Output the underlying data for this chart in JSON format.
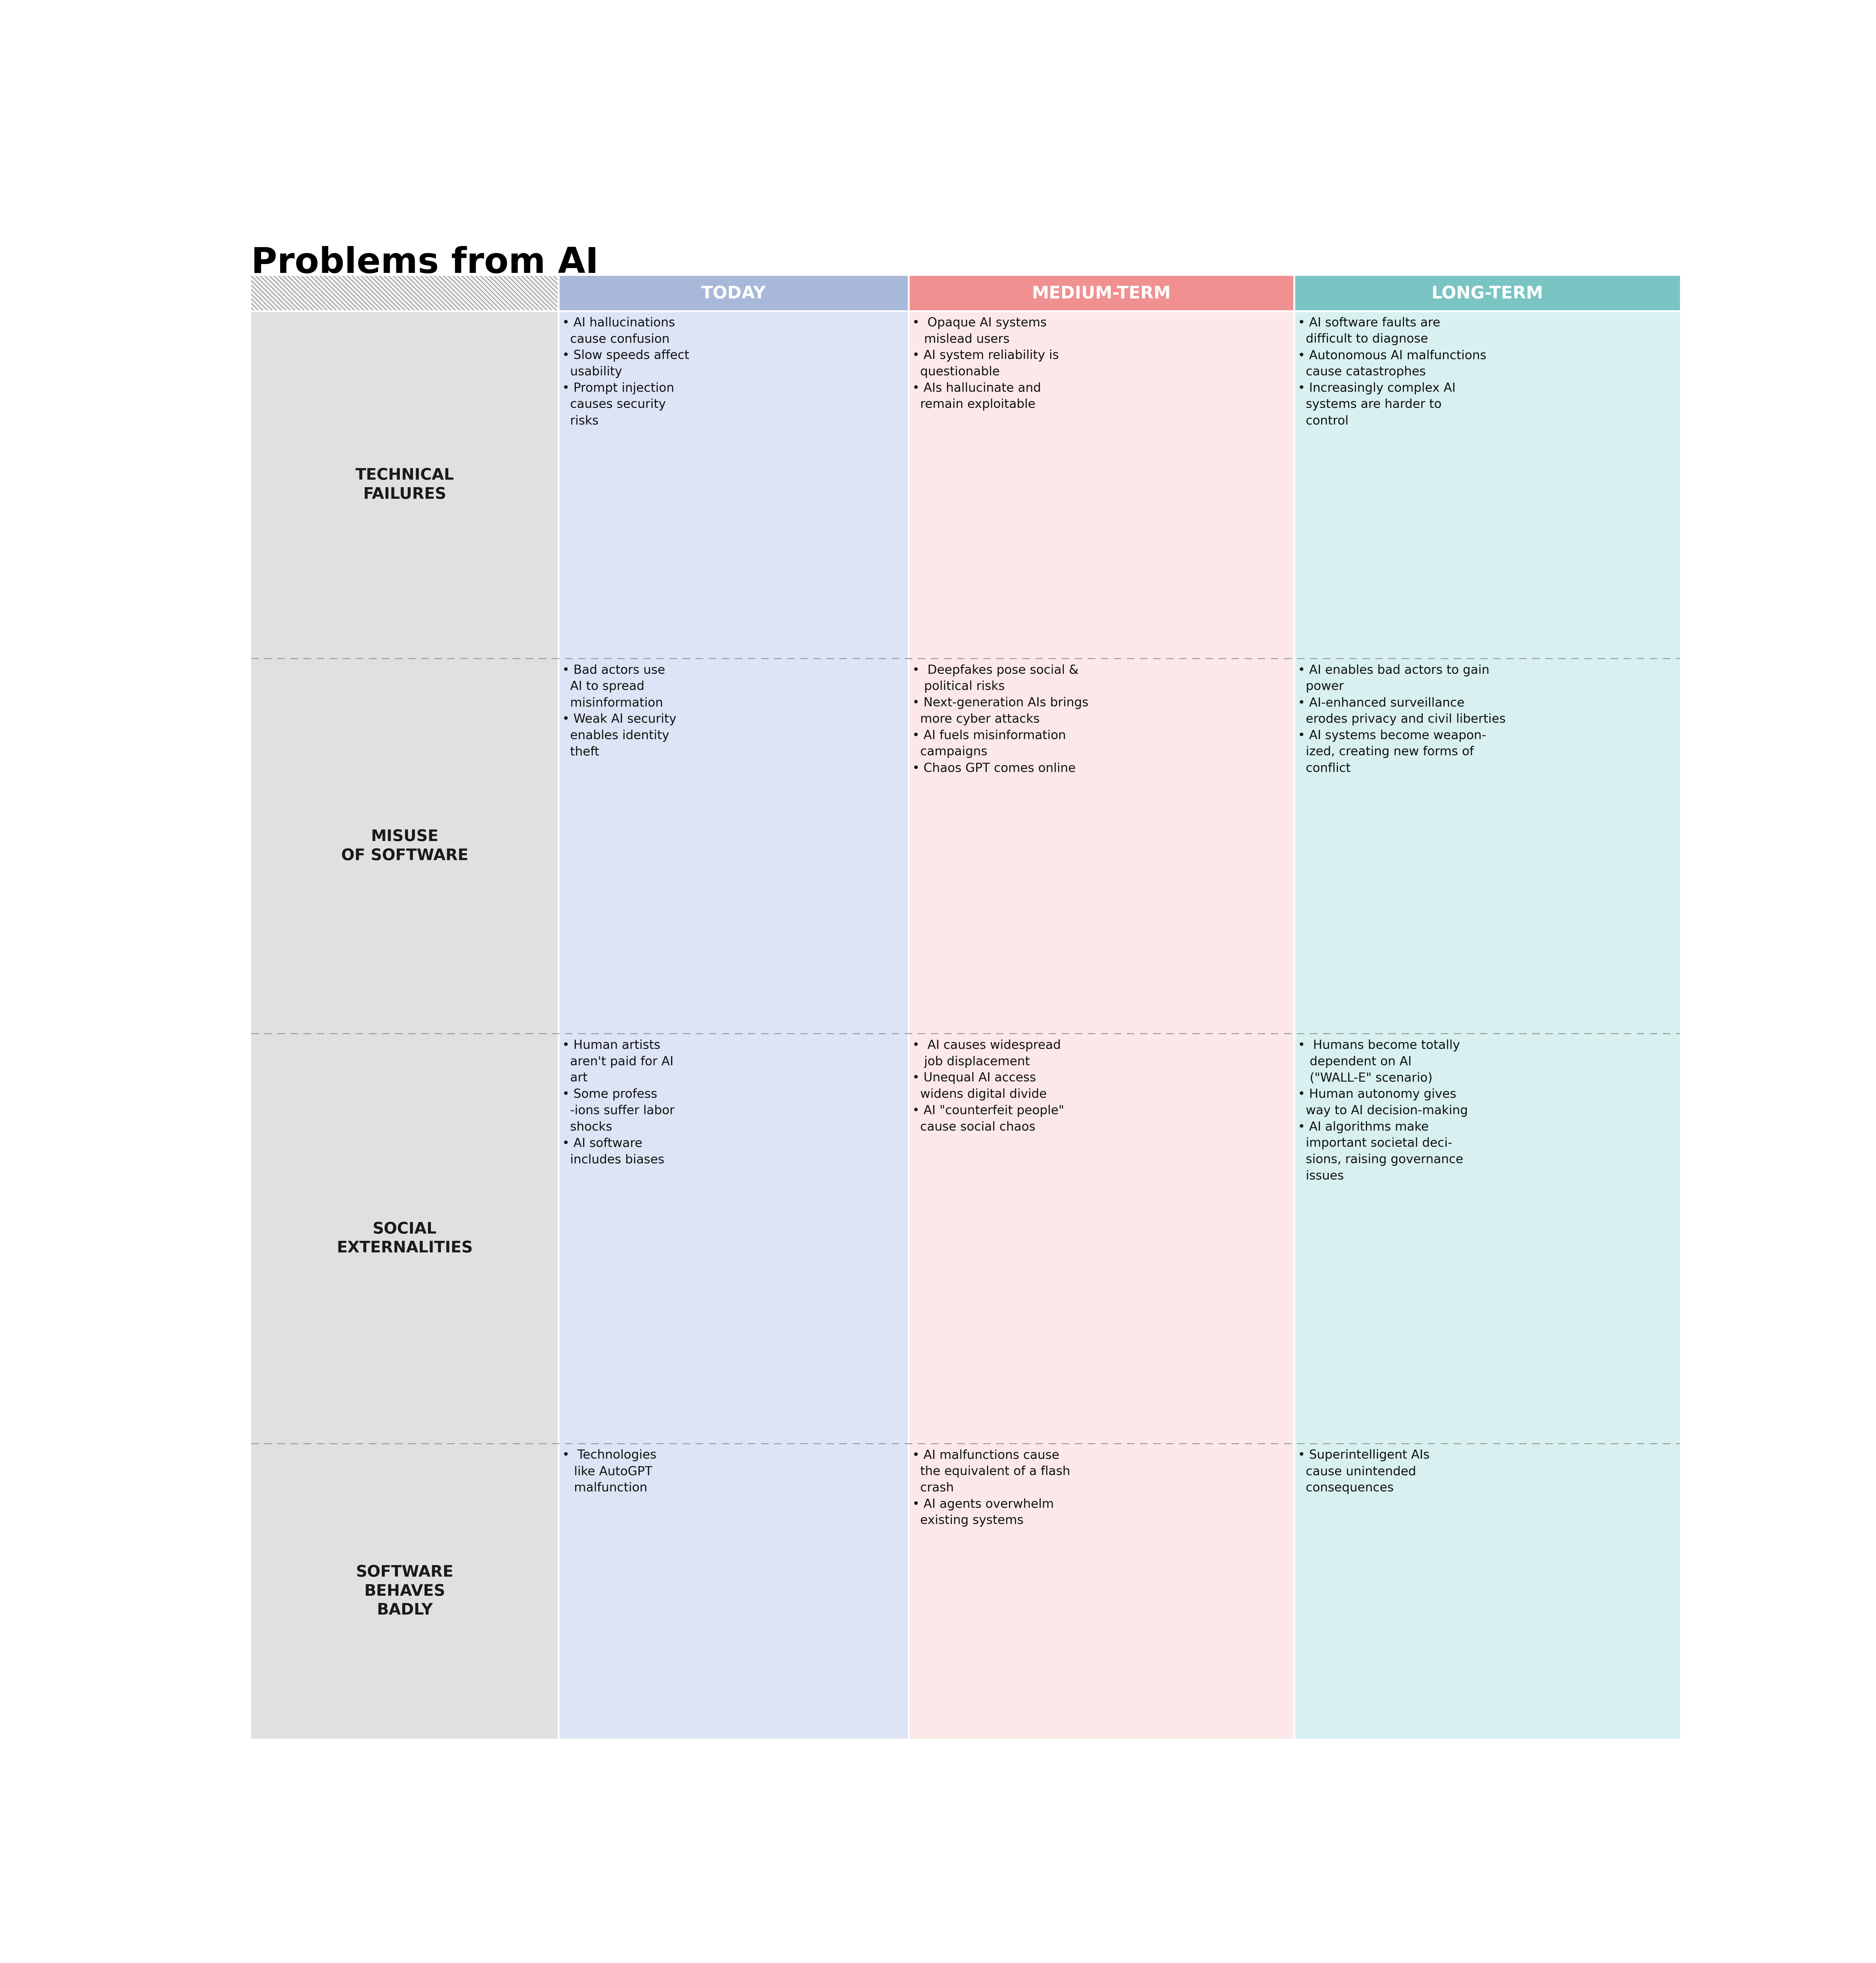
{
  "title": "Problems from AI",
  "title_fontsize": 95,
  "title_color": "#000000",
  "background_color": "#ffffff",
  "col_headers": [
    "TODAY",
    "MEDIUM-TERM",
    "LONG-TERM"
  ],
  "col_header_colors": [
    "#a8b8d8",
    "#f09090",
    "#7bc4c4"
  ],
  "col_header_text_color": "#ffffff",
  "col_header_fontsize": 46,
  "row_labels": [
    "TECHNICAL\nFAILURES",
    "MISUSE\nOF SOFTWARE",
    "SOCIAL\nEXTERNALITIES",
    "SOFTWARE\nBEHAVES\nBADLY"
  ],
  "row_label_color": "#e0e0e0",
  "row_label_fontsize": 42,
  "cell_col_colors": [
    "#dce4f5",
    "#fce8e8",
    "#d8f0f0"
  ],
  "hatch_bg": "#f0f0f0",
  "hatch_line_color": "#555555",
  "cells": [
    [
      "• AI hallucinations\n  cause confusion\n• Slow speeds affect\n  usability\n• Prompt injection\n  causes security\n  risks",
      "•  Opaque AI systems\n   mislead users\n• AI system reliability is\n  questionable\n• AIs hallucinate and\n  remain exploitable",
      "• AI software faults are\n  difficult to diagnose\n• Autonomous AI malfunctions\n  cause catastrophes\n• Increasingly complex AI\n  systems are harder to\n  control"
    ],
    [
      "• Bad actors use\n  AI to spread\n  misinformation\n• Weak AI security\n  enables identity\n  theft",
      "•  Deepfakes pose social &\n   political risks\n• Next-generation AIs brings\n  more cyber attacks\n• AI fuels misinformation\n  campaigns\n• Chaos GPT comes online",
      "• AI enables bad actors to gain\n  power\n• AI-enhanced surveillance\n  erodes privacy and civil liberties\n• AI systems become weapon-\n  ized, creating new forms of\n  conflict"
    ],
    [
      "• Human artists\n  aren't paid for AI\n  art\n• Some profess\n  -ions suffer labor\n  shocks\n• AI software\n  includes biases",
      "•  AI causes widespread\n   job displacement\n• Unequal AI access\n  widens digital divide\n• AI \"counterfeit people\"\n  cause social chaos",
      "•  Humans become totally\n   dependent on AI\n   (\"WALL-E\" scenario)\n• Human autonomy gives\n  way to AI decision-making\n• AI algorithms make\n  important societal deci-\n  sions, raising governance\n  issues"
    ],
    [
      "•  Technologies\n   like AutoGPT\n   malfunction",
      "• AI malfunctions cause\n  the equivalent of a flash\n  crash\n• AI agents overwhelm\n  existing systems",
      "• Superintelligent AIs\n  cause unintended\n  consequences"
    ]
  ],
  "cell_fontsize": 33,
  "divider_color": "#999999",
  "divider_style": "--"
}
